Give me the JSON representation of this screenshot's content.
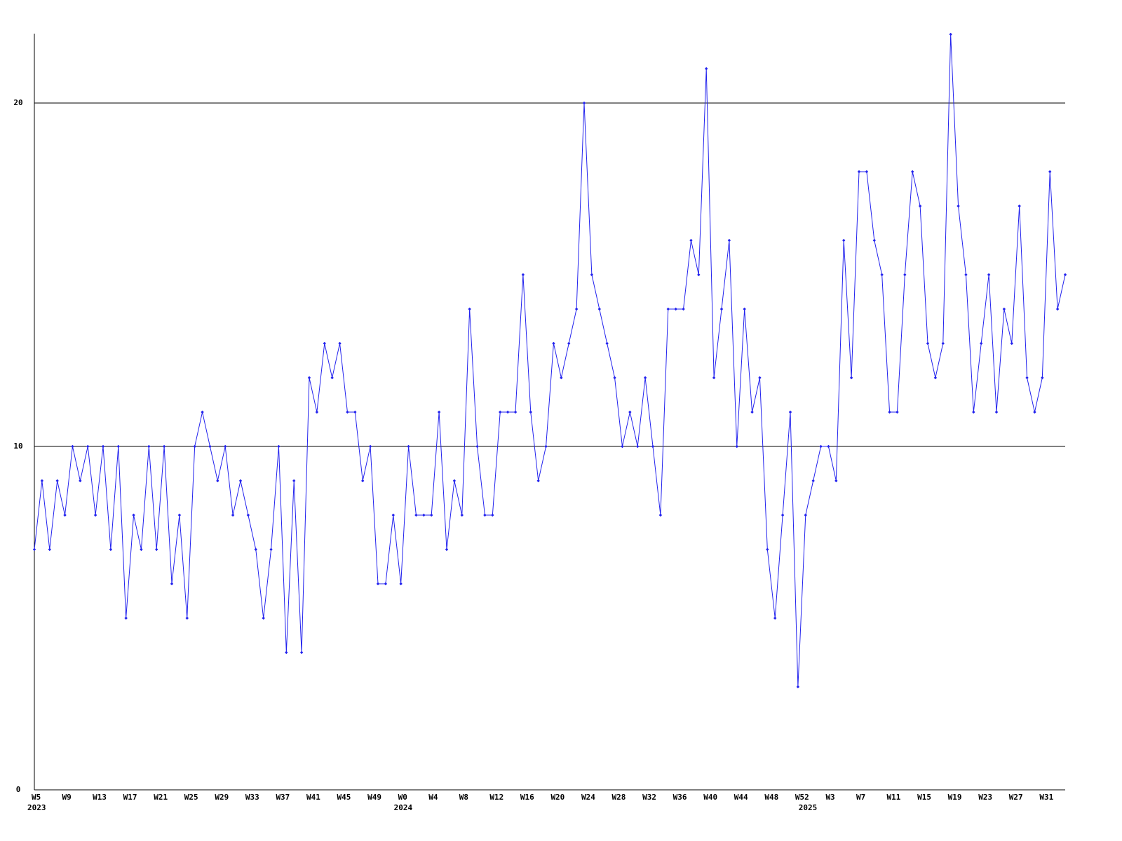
{
  "chart_data": {
    "type": "line",
    "categories": [
      "W5",
      null,
      null,
      null,
      "W9",
      null,
      null,
      null,
      "W13",
      null,
      null,
      null,
      "W17",
      null,
      null,
      null,
      "W21",
      null,
      null,
      null,
      "W25",
      null,
      null,
      null,
      "W29",
      null,
      null,
      null,
      "W33",
      null,
      null,
      null,
      "W37",
      null,
      null,
      null,
      "W41",
      null,
      null,
      null,
      "W45",
      null,
      null,
      null,
      "W49",
      null,
      null,
      null,
      "W0",
      null,
      null,
      null,
      "W4",
      null,
      null,
      null,
      "W8",
      null,
      null,
      null,
      "W12",
      null,
      null,
      null,
      "W16",
      null,
      null,
      null,
      "W20",
      null,
      null,
      null,
      "W24",
      null,
      null,
      null,
      "W28",
      null,
      null,
      null,
      "W32",
      null,
      null,
      null,
      "W36",
      null,
      null,
      null,
      "W40",
      null,
      null,
      null,
      "W44",
      null,
      null,
      null,
      "W48",
      null,
      null,
      null,
      "W52",
      null,
      null,
      null,
      "W3",
      null,
      null,
      null,
      "W7",
      null,
      null,
      null,
      "W11",
      null,
      null,
      null,
      "W15",
      null,
      null,
      null,
      "W19",
      null,
      null,
      null,
      "W23",
      null,
      null,
      null,
      "W27",
      null,
      null,
      null,
      "W31",
      null,
      null,
      null
    ],
    "year_labels": [
      {
        "index": 0,
        "label": "2023"
      },
      {
        "index": 48,
        "label": "2024"
      },
      {
        "index": 101,
        "label": "2025"
      }
    ],
    "series": [
      {
        "color": "#2222ee",
        "values": [
          7,
          9,
          7,
          9,
          8,
          10,
          9,
          10,
          8,
          10,
          7,
          10,
          5,
          8,
          7,
          10,
          7,
          10,
          6,
          8,
          5,
          10,
          11,
          10,
          9,
          10,
          8,
          9,
          8,
          7,
          5,
          7,
          10,
          4,
          9,
          4,
          12,
          11,
          13,
          12,
          13,
          11,
          11,
          9,
          10,
          6,
          6,
          8,
          6,
          10,
          8,
          8,
          8,
          11,
          7,
          9,
          8,
          14,
          10,
          8,
          8,
          11,
          11,
          11,
          15,
          11,
          9,
          10,
          13,
          12,
          13,
          14,
          20,
          15,
          14,
          13,
          12,
          10,
          11,
          10,
          12,
          10,
          8,
          14,
          14,
          14,
          16,
          15,
          21,
          12,
          14,
          16,
          10,
          14,
          11,
          12,
          7,
          5,
          8,
          11,
          3,
          8,
          9,
          10,
          10,
          9,
          16,
          12,
          18,
          18,
          16,
          15,
          11,
          11,
          15,
          18,
          17,
          13,
          12,
          13,
          22,
          17,
          15,
          11,
          13,
          15,
          11,
          14,
          13,
          17,
          12,
          11,
          12,
          18,
          14,
          15
        ]
      }
    ],
    "ylim": [
      0,
      22
    ],
    "yticks": [
      0,
      10,
      20
    ],
    "grid": true
  }
}
